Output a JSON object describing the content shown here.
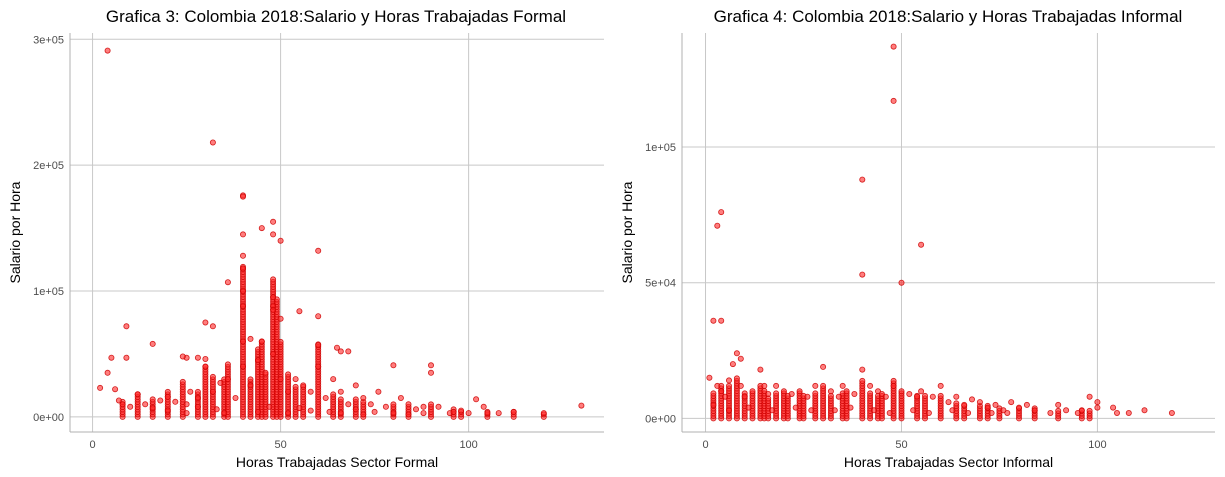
{
  "colors": {
    "points": "#ff0000",
    "grid": "#c8c8c8"
  },
  "chart_data": [
    {
      "type": "scatter",
      "title": "Grafica 3: Colombia 2018:Salario y Horas Trabajadas Formal",
      "xlabel": "Horas Trabajadas Sector Formal",
      "ylabel": "Salario por Hora",
      "xlim": [
        -6,
        136
      ],
      "ylim": [
        -12000,
        305000
      ],
      "xticks": [
        0,
        50,
        100
      ],
      "xtick_labels": [
        "0",
        "50",
        "100"
      ],
      "yticks": [
        0,
        100000,
        200000,
        300000
      ],
      "ytick_labels": [
        "0e+00",
        "1e+05",
        "2e+05",
        "3e+05"
      ],
      "grid": true,
      "point_color": "#ff0000",
      "points": [
        [
          4,
          291000
        ],
        [
          32,
          218000
        ],
        [
          40,
          176000
        ],
        [
          40,
          175000
        ],
        [
          48,
          155000
        ],
        [
          45,
          150000
        ],
        [
          40,
          145000
        ],
        [
          48,
          145000
        ],
        [
          50,
          140000
        ],
        [
          60,
          132000
        ],
        [
          40,
          128000
        ],
        [
          40,
          118000
        ],
        [
          36,
          107000
        ],
        [
          40,
          100000
        ],
        [
          48,
          95000
        ],
        [
          30,
          75000
        ],
        [
          9,
          72000
        ],
        [
          32,
          72000
        ],
        [
          40,
          88000
        ],
        [
          48,
          88000
        ],
        [
          48,
          85000
        ],
        [
          50,
          78000
        ],
        [
          55,
          84000
        ],
        [
          60,
          80000
        ],
        [
          16,
          58000
        ],
        [
          42,
          62000
        ],
        [
          45,
          60000
        ],
        [
          60,
          57000
        ],
        [
          65,
          55000
        ],
        [
          66,
          52000
        ],
        [
          68,
          52000
        ],
        [
          5,
          47000
        ],
        [
          9,
          47000
        ],
        [
          25,
          47000
        ],
        [
          28,
          47000
        ],
        [
          30,
          46000
        ],
        [
          24,
          48000
        ],
        [
          2,
          23000
        ],
        [
          4,
          35000
        ],
        [
          6,
          22000
        ],
        [
          7,
          13000
        ],
        [
          8,
          10000
        ],
        [
          10,
          8000
        ],
        [
          12,
          18000
        ],
        [
          14,
          10000
        ],
        [
          16,
          7000
        ],
        [
          18,
          13000
        ],
        [
          20,
          16000
        ],
        [
          22,
          12000
        ],
        [
          25,
          10000
        ],
        [
          26,
          20000
        ],
        [
          28,
          15000
        ],
        [
          30,
          40000
        ],
        [
          32,
          20000
        ],
        [
          34,
          27000
        ],
        [
          36,
          30000
        ],
        [
          38,
          15000
        ],
        [
          40,
          60000
        ],
        [
          40,
          40000
        ],
        [
          42,
          25000
        ],
        [
          44,
          45000
        ],
        [
          46,
          35000
        ],
        [
          48,
          50000
        ],
        [
          50,
          30000
        ],
        [
          52,
          20000
        ],
        [
          54,
          30000
        ],
        [
          56,
          25000
        ],
        [
          58,
          20000
        ],
        [
          60,
          40000
        ],
        [
          62,
          15000
        ],
        [
          64,
          30000
        ],
        [
          66,
          20000
        ],
        [
          68,
          10000
        ],
        [
          70,
          25000
        ],
        [
          72,
          15000
        ],
        [
          74,
          10000
        ],
        [
          76,
          20000
        ],
        [
          78,
          8000
        ],
        [
          80,
          41000
        ],
        [
          82,
          15000
        ],
        [
          84,
          10000
        ],
        [
          86,
          6000
        ],
        [
          88,
          8000
        ],
        [
          90,
          41000
        ],
        [
          90,
          35000
        ],
        [
          92,
          8000
        ],
        [
          95,
          3000
        ],
        [
          96,
          4000
        ],
        [
          98,
          5000
        ],
        [
          100,
          3000
        ],
        [
          102,
          14000
        ],
        [
          104,
          8000
        ],
        [
          105,
          3000
        ],
        [
          108,
          3000
        ],
        [
          112,
          4000
        ],
        [
          120,
          3000
        ],
        [
          130,
          9000
        ],
        [
          20,
          5000
        ],
        [
          25,
          3000
        ],
        [
          28,
          8000
        ],
        [
          33,
          6000
        ],
        [
          35,
          3000
        ],
        [
          44,
          4000
        ],
        [
          47,
          8000
        ],
        [
          52,
          3000
        ],
        [
          55,
          7000
        ],
        [
          58,
          5000
        ],
        [
          63,
          4000
        ],
        [
          66,
          3000
        ],
        [
          70,
          6000
        ],
        [
          72,
          2000
        ],
        [
          75,
          4000
        ],
        [
          80,
          3000
        ],
        [
          84,
          2000
        ],
        [
          88,
          3000
        ]
      ],
      "columns": [
        [
          8,
          0,
          12000
        ],
        [
          12,
          0,
          18000
        ],
        [
          16,
          0,
          15000
        ],
        [
          20,
          0,
          20000
        ],
        [
          24,
          0,
          28000
        ],
        [
          28,
          0,
          20000
        ],
        [
          30,
          0,
          40000
        ],
        [
          32,
          0,
          32000
        ],
        [
          35,
          0,
          30000
        ],
        [
          36,
          0,
          42000
        ],
        [
          40,
          0,
          120000
        ],
        [
          42,
          0,
          30000
        ],
        [
          44,
          0,
          55000
        ],
        [
          45,
          0,
          60000
        ],
        [
          46,
          0,
          35000
        ],
        [
          48,
          0,
          110000
        ],
        [
          49,
          0,
          95000
        ],
        [
          50,
          0,
          60000
        ],
        [
          52,
          0,
          35000
        ],
        [
          54,
          0,
          25000
        ],
        [
          56,
          0,
          25000
        ],
        [
          60,
          0,
          58000
        ],
        [
          64,
          0,
          18000
        ],
        [
          66,
          0,
          15000
        ],
        [
          70,
          0,
          15000
        ],
        [
          72,
          0,
          12000
        ],
        [
          80,
          0,
          10000
        ],
        [
          84,
          0,
          9000
        ],
        [
          90,
          0,
          10000
        ],
        [
          96,
          0,
          6000
        ],
        [
          98,
          0,
          5000
        ],
        [
          105,
          0,
          4000
        ],
        [
          112,
          0,
          4000
        ],
        [
          120,
          0,
          3000
        ]
      ]
    },
    {
      "type": "scatter",
      "title": "Grafica 4: Colombia 2018:Salario y Horas Trabajadas Informal",
      "xlabel": "Horas Trabajadas Sector Informal",
      "ylabel": "Salario por Hora",
      "xlim": [
        -6,
        130
      ],
      "ylim": [
        -5000,
        142000
      ],
      "xticks": [
        0,
        50,
        100
      ],
      "xtick_labels": [
        "0",
        "50",
        "100"
      ],
      "yticks": [
        0,
        50000,
        100000
      ],
      "ytick_labels": [
        "0e+00",
        "5e+04",
        "1e+05"
      ],
      "grid": true,
      "point_color": "#ff0000",
      "points": [
        [
          48,
          137000
        ],
        [
          48,
          117000
        ],
        [
          40,
          88000
        ],
        [
          4,
          76000
        ],
        [
          3,
          71000
        ],
        [
          55,
          64000
        ],
        [
          40,
          53000
        ],
        [
          50,
          50000
        ],
        [
          2,
          36000
        ],
        [
          4,
          36000
        ],
        [
          8,
          24000
        ],
        [
          9,
          22000
        ],
        [
          1,
          15000
        ],
        [
          3,
          12000
        ],
        [
          4,
          10000
        ],
        [
          5,
          8000
        ],
        [
          6,
          14000
        ],
        [
          7,
          20000
        ],
        [
          9,
          12000
        ],
        [
          10,
          8000
        ],
        [
          12,
          10000
        ],
        [
          14,
          18000
        ],
        [
          15,
          12000
        ],
        [
          16,
          9000
        ],
        [
          18,
          12000
        ],
        [
          20,
          10000
        ],
        [
          22,
          9000
        ],
        [
          24,
          10000
        ],
        [
          26,
          8000
        ],
        [
          28,
          12000
        ],
        [
          30,
          19000
        ],
        [
          32,
          10000
        ],
        [
          34,
          8000
        ],
        [
          35,
          12000
        ],
        [
          36,
          10000
        ],
        [
          38,
          9000
        ],
        [
          40,
          18000
        ],
        [
          42,
          12000
        ],
        [
          44,
          10000
        ],
        [
          45,
          9000
        ],
        [
          46,
          8000
        ],
        [
          48,
          12000
        ],
        [
          50,
          10000
        ],
        [
          52,
          9000
        ],
        [
          54,
          8000
        ],
        [
          55,
          10000
        ],
        [
          58,
          8000
        ],
        [
          60,
          12000
        ],
        [
          62,
          6000
        ],
        [
          64,
          8000
        ],
        [
          66,
          5000
        ],
        [
          68,
          7000
        ],
        [
          70,
          6000
        ],
        [
          72,
          4000
        ],
        [
          74,
          5000
        ],
        [
          76,
          3000
        ],
        [
          78,
          6000
        ],
        [
          80,
          4000
        ],
        [
          82,
          5000
        ],
        [
          84,
          3000
        ],
        [
          88,
          2000
        ],
        [
          90,
          5000
        ],
        [
          92,
          3000
        ],
        [
          95,
          2000
        ],
        [
          96,
          3000
        ],
        [
          98,
          8000
        ],
        [
          100,
          6000
        ],
        [
          100,
          4000
        ],
        [
          104,
          4000
        ],
        [
          105,
          2000
        ],
        [
          108,
          2000
        ],
        [
          112,
          3000
        ],
        [
          119,
          2000
        ],
        [
          2,
          5000
        ],
        [
          6,
          3000
        ],
        [
          11,
          4000
        ],
        [
          17,
          3000
        ],
        [
          23,
          4000
        ],
        [
          27,
          3000
        ],
        [
          33,
          3000
        ],
        [
          37,
          4000
        ],
        [
          43,
          3000
        ],
        [
          47,
          2000
        ],
        [
          53,
          3000
        ],
        [
          57,
          2000
        ],
        [
          63,
          3000
        ],
        [
          67,
          2000
        ],
        [
          73,
          2000
        ],
        [
          77,
          2000
        ]
      ],
      "columns": [
        [
          2,
          0,
          10000
        ],
        [
          4,
          0,
          12000
        ],
        [
          6,
          0,
          12000
        ],
        [
          8,
          0,
          15000
        ],
        [
          10,
          0,
          10000
        ],
        [
          12,
          0,
          10000
        ],
        [
          14,
          0,
          12000
        ],
        [
          15,
          0,
          11000
        ],
        [
          16,
          0,
          8000
        ],
        [
          18,
          0,
          10000
        ],
        [
          20,
          0,
          10000
        ],
        [
          21,
          0,
          9000
        ],
        [
          24,
          0,
          10000
        ],
        [
          25,
          0,
          9000
        ],
        [
          28,
          0,
          10000
        ],
        [
          30,
          0,
          12000
        ],
        [
          32,
          0,
          9000
        ],
        [
          35,
          0,
          10000
        ],
        [
          36,
          0,
          10000
        ],
        [
          40,
          0,
          14000
        ],
        [
          42,
          0,
          10000
        ],
        [
          44,
          0,
          9000
        ],
        [
          45,
          0,
          9000
        ],
        [
          48,
          0,
          14000
        ],
        [
          50,
          0,
          10000
        ],
        [
          54,
          0,
          9000
        ],
        [
          56,
          0,
          9000
        ],
        [
          60,
          0,
          9000
        ],
        [
          64,
          0,
          6000
        ],
        [
          66,
          0,
          5000
        ],
        [
          70,
          0,
          5000
        ],
        [
          72,
          0,
          5000
        ],
        [
          75,
          0,
          4000
        ],
        [
          80,
          0,
          4000
        ],
        [
          84,
          0,
          4000
        ],
        [
          90,
          0,
          3000
        ],
        [
          96,
          0,
          3000
        ],
        [
          98,
          0,
          3000
        ]
      ]
    }
  ]
}
